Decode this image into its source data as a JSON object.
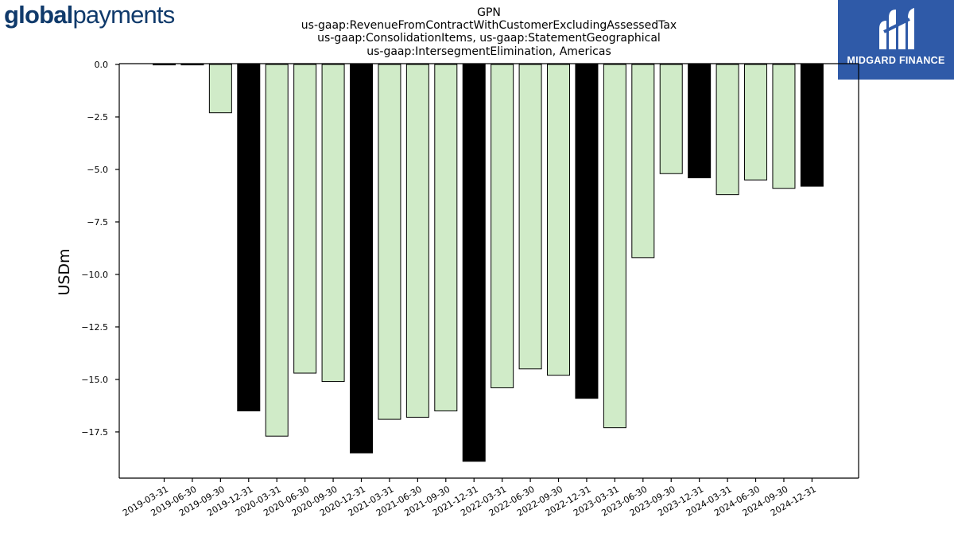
{
  "logos": {
    "left": {
      "bold": "global",
      "light": "payments"
    },
    "right": {
      "text": "MIDGARD FINANCE",
      "icon": "midgard-m-icon",
      "background": "#2f5aa8"
    }
  },
  "chart_data": {
    "type": "bar",
    "title_lines": [
      "GPN",
      "us-gaap:RevenueFromContractWithCustomerExcludingAssessedTax",
      "us-gaap:ConsolidationItems, us-gaap:StatementGeographical",
      "us-gaap:IntersegmentElimination, Americas"
    ],
    "ylabel": "USDm",
    "xlabel": "",
    "ylim": [
      -19.7,
      0
    ],
    "yticks": [
      0.0,
      -2.5,
      -5.0,
      -7.5,
      -10.0,
      -12.5,
      -15.0,
      -17.5
    ],
    "ytick_labels": [
      "0.0",
      "−2.5",
      "−5.0",
      "−7.5",
      "−10.0",
      "−12.5",
      "−15.0",
      "−17.5"
    ],
    "categories": [
      "2019-03-31",
      "2019-06-30",
      "2019-09-30",
      "2019-12-31",
      "2020-03-31",
      "2020-06-30",
      "2020-09-30",
      "2020-12-31",
      "2021-03-31",
      "2021-06-30",
      "2021-09-30",
      "2021-12-31",
      "2022-03-31",
      "2022-06-30",
      "2022-09-30",
      "2022-12-31",
      "2023-03-31",
      "2023-06-30",
      "2023-09-30",
      "2023-12-31",
      "2024-03-31",
      "2024-06-30",
      "2024-09-30",
      "2024-12-31"
    ],
    "values": [
      0.0,
      0.0,
      -2.3,
      -16.5,
      -17.7,
      -14.7,
      -15.1,
      -18.5,
      -16.9,
      -16.8,
      -16.5,
      -18.9,
      -15.4,
      -14.5,
      -14.8,
      -15.9,
      -17.3,
      -9.2,
      -5.2,
      -5.4,
      -6.2,
      -5.5,
      -5.9,
      -5.8
    ],
    "colors": {
      "quarterly": "#d0ebc8",
      "year_end": "#000000",
      "edge": "#000000"
    },
    "year_end_quarter": "12-31",
    "grid": false,
    "legend": "none"
  }
}
